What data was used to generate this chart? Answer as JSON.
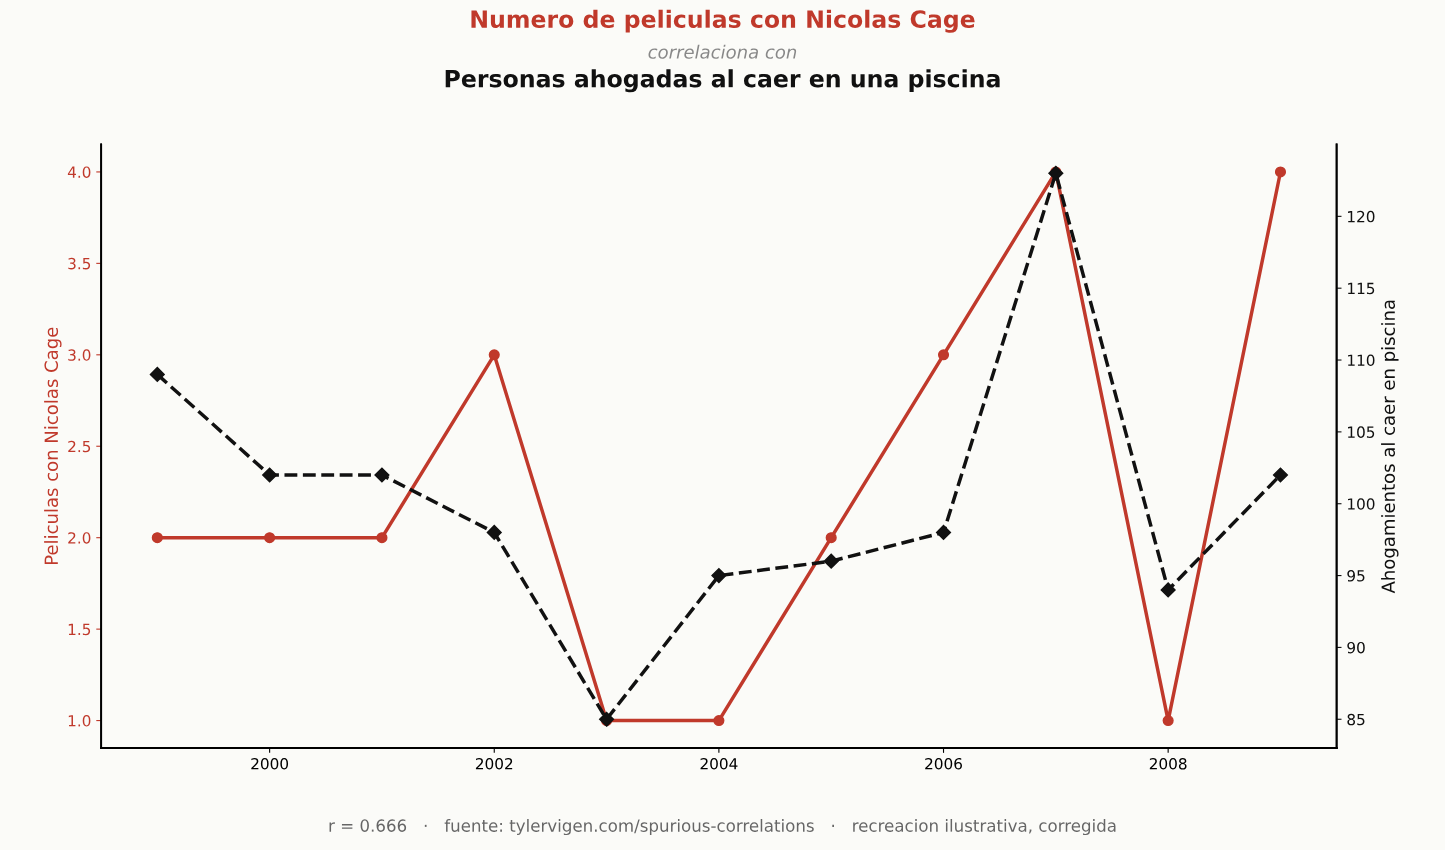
{
  "chart_data": {
    "type": "line",
    "title": "Numero de peliculas con Nicolas Cage",
    "subtitle": "correlaciona con",
    "ylabel": "Peliculas con Nicolas Cage",
    "y2label": "Ahogamientos al caer en piscina",
    "annotations": [
      "Personas ahogadas al caer en una piscina",
      "r = 0.666   ·   fuente: tylervigen.com/spurious-correlations   ·   recreacion ilustrativa, corregida"
    ],
    "x": [
      1999,
      2000,
      2001,
      2002,
      2003,
      2004,
      2005,
      2006,
      2007,
      2008,
      2009
    ],
    "series": [
      {
        "color": "#c0392b",
        "values": [
          2,
          2,
          2,
          3,
          1,
          1,
          2,
          3,
          4,
          1,
          4
        ],
        "marker": "circle",
        "line_style": "solid"
      },
      {
        "color": "#111111",
        "values": [
          109,
          102,
          102,
          98,
          85,
          95,
          96,
          98,
          123,
          94,
          102
        ],
        "axis": "y2",
        "marker": "diamond",
        "line_style": "dashed"
      }
    ],
    "xlim": [
      1998.5,
      2009.5
    ],
    "xticks": [
      2000,
      2002,
      2004,
      2006,
      2008
    ],
    "ylim": [
      0.85,
      4.15
    ],
    "yticks": [
      {
        "value": 1,
        "label": "1.0"
      },
      {
        "value": 1.5,
        "label": "1.5"
      },
      {
        "value": 2,
        "label": "2.0"
      },
      {
        "value": 2.5,
        "label": "2.5"
      },
      {
        "value": 3,
        "label": "3.0"
      },
      {
        "value": 3.5,
        "label": "3.5"
      },
      {
        "value": 4,
        "label": "4.0"
      }
    ],
    "y2lim": [
      83,
      125
    ],
    "y2ticks": [
      85,
      90,
      95,
      100,
      105,
      110,
      115,
      120
    ],
    "grid": false,
    "legend": false
  }
}
